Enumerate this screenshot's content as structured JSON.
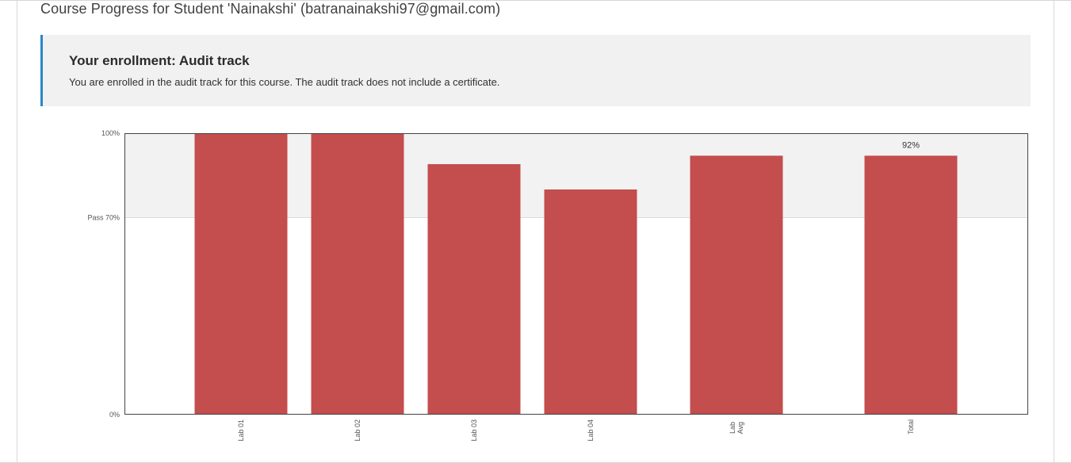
{
  "page": {
    "title": "Course Progress for Student 'Nainakshi' (batranainakshi97@gmail.com)"
  },
  "enrollment": {
    "title": "Your enrollment: Audit track",
    "message": "You are enrolled in the audit track for this course. The audit track does not include a certificate."
  },
  "colors": {
    "bar": "#c44d4d",
    "pass_band": "#f2f2f2",
    "notice_accent": "#2886c7"
  },
  "chart_data": {
    "type": "bar",
    "categories": [
      "Lab 01",
      "Lab 02",
      "Lab 03",
      "Lab 04",
      "Lab Avg",
      "Total"
    ],
    "values": [
      100,
      100,
      89,
      80,
      92,
      92
    ],
    "data_labels": [
      null,
      null,
      null,
      null,
      null,
      "92%"
    ],
    "y_ticks": [
      {
        "value": 0,
        "label": "0%"
      },
      {
        "value": 70,
        "label": "Pass 70%"
      },
      {
        "value": 100,
        "label": "100%"
      }
    ],
    "ylim": [
      0,
      100
    ],
    "pass_threshold": 70,
    "grid": false,
    "title": "",
    "xlabel": "",
    "ylabel": ""
  }
}
